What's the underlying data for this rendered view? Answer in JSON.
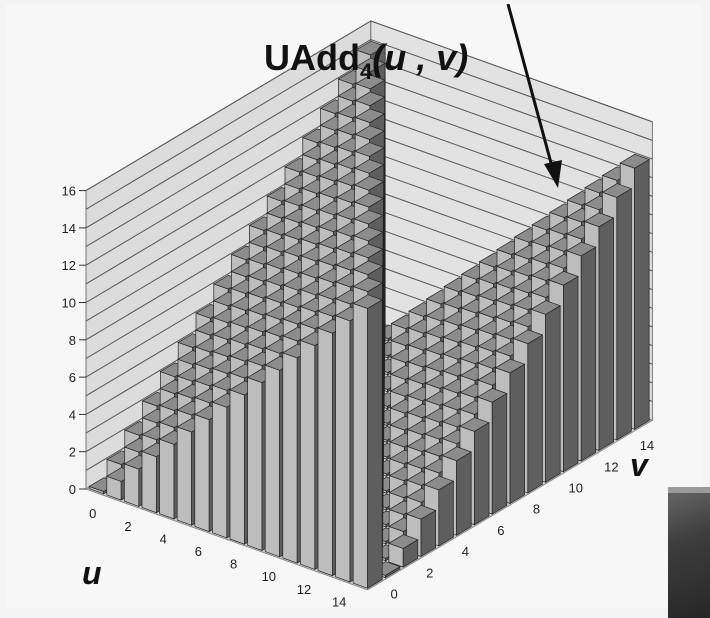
{
  "chart_data": {
    "type": "bar3d",
    "title_main": "UAdd",
    "title_sub": "4",
    "title_args": "(u , v)",
    "xlabel": "u",
    "ylabel": "v",
    "zlim": [
      0,
      16
    ],
    "z_ticks": [
      "0",
      "2",
      "4",
      "6",
      "8",
      "10",
      "12",
      "14",
      "16"
    ],
    "u_ticks": [
      "0",
      "2",
      "4",
      "6",
      "8",
      "10",
      "12",
      "14"
    ],
    "v_ticks": [
      "0",
      "2",
      "4",
      "6",
      "8",
      "10",
      "12",
      "14"
    ],
    "u_values": [
      0,
      1,
      2,
      3,
      4,
      5,
      6,
      7,
      8,
      9,
      10,
      11,
      12,
      13,
      14,
      15
    ],
    "v_values": [
      0,
      1,
      2,
      3,
      4,
      5,
      6,
      7,
      8,
      9,
      10,
      11,
      12,
      13,
      14,
      15
    ],
    "function": "u + v if u + v < 16, else u + v - 16",
    "grid": true,
    "colors": {
      "bar_light": "#bdbdbd",
      "bar_dark": "#5e5e5e",
      "wall": "#dcdcdc",
      "grid": "#555555"
    }
  }
}
